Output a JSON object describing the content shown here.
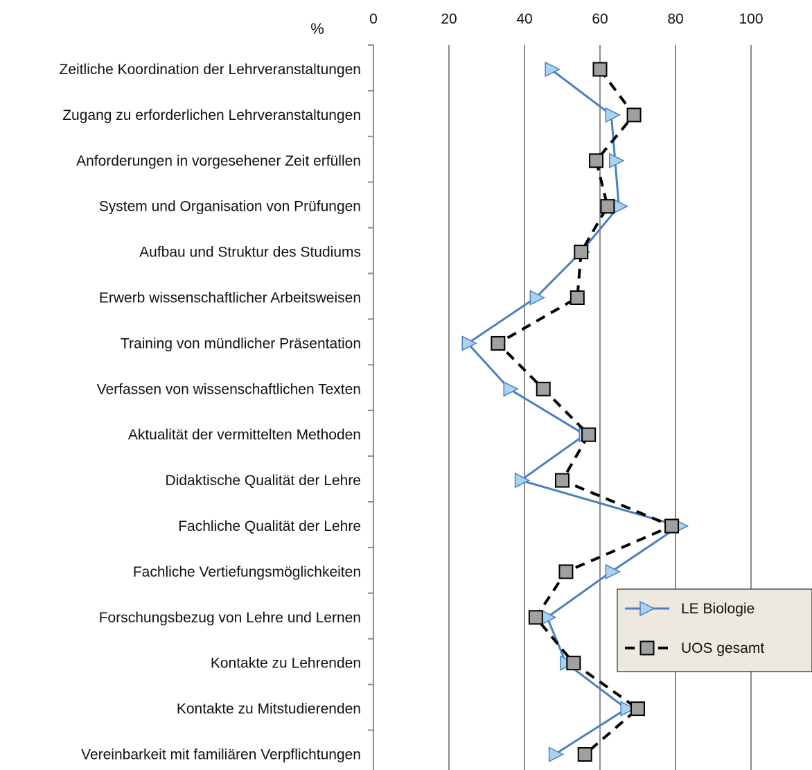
{
  "chart_data": {
    "type": "line",
    "orientation": "horizontal-categories",
    "unit_label": "%",
    "xlim": [
      0,
      100
    ],
    "x_ticks": [
      "0",
      "20",
      "40",
      "60",
      "80",
      "100"
    ],
    "grid": true,
    "legend_position": "bottom-right",
    "categories": [
      "Zeitliche Koordination der Lehrveranstaltungen",
      "Zugang zu erforderlichen Lehrveranstaltungen",
      "Anforderungen in vorgesehener Zeit erfüllen",
      "System und Organisation von Prüfungen",
      "Aufbau und Struktur des Studiums",
      "Erwerb wissenschaftlicher Arbeitsweisen",
      "Training von mündlicher Präsentation",
      "Verfassen von wissenschaftlichen Texten",
      "Aktualität der vermittelten Methoden",
      "Didaktische Qualität der Lehre",
      "Fachliche Qualität der Lehre",
      "Fachliche Vertiefungsmöglichkeiten",
      "Forschungsbezug von Lehre und Lernen",
      "Kontakte zu Lehrenden",
      "Kontakte zu Mitstudierenden",
      "Vereinbarkeit mit familiären Verpflichtungen"
    ],
    "series": [
      {
        "name": "LE Biologie",
        "values": [
          47,
          63,
          64,
          65,
          55,
          43,
          25,
          36,
          56,
          39,
          81,
          63,
          46,
          51,
          67,
          48
        ],
        "color": "#4a7fc1",
        "marker_fill": "#a9d3ee",
        "marker": "triangle-right",
        "line_style": "solid"
      },
      {
        "name": "UOS gesamt",
        "values": [
          60,
          69,
          59,
          62,
          55,
          54,
          33,
          45,
          57,
          50,
          79,
          51,
          43,
          53,
          70,
          56
        ],
        "color": "#000000",
        "marker_fill": "#a0a0a0",
        "marker": "square",
        "line_style": "dashed"
      }
    ]
  }
}
